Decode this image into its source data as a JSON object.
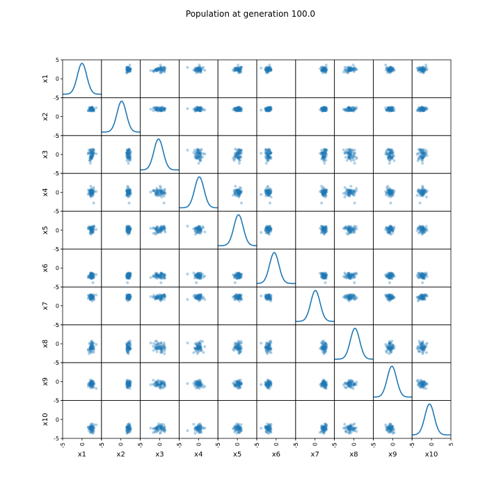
{
  "chart_data": {
    "type": "scatter_matrix",
    "title": "Population at generation 100.0",
    "variables": [
      "x1",
      "x2",
      "x3",
      "x4",
      "x5",
      "x6",
      "x7",
      "x8",
      "x9",
      "x10"
    ],
    "axis_range": [
      -5,
      5
    ],
    "tick_values": [
      -5,
      0,
      5
    ],
    "tick_labels": [
      "-5",
      "0",
      "5"
    ],
    "diagonal": "kde",
    "points_per_panel": 60,
    "color": "#1f77b4",
    "point_alpha": 0.35,
    "clusters": [
      {
        "var": "x1",
        "mean": 2.4,
        "sd": 0.45
      },
      {
        "var": "x2",
        "mean": 2.0,
        "sd": 0.3
      },
      {
        "var": "x3",
        "mean": 0.0,
        "sd": 0.9
      },
      {
        "var": "x4",
        "mean": 0.0,
        "sd": 0.7
      },
      {
        "var": "x5",
        "mean": 0.2,
        "sd": 0.6
      },
      {
        "var": "x6",
        "mean": -2.0,
        "sd": 0.45
      },
      {
        "var": "x7",
        "mean": 2.3,
        "sd": 0.4
      },
      {
        "var": "x8",
        "mean": -1.0,
        "sd": 0.7
      },
      {
        "var": "x9",
        "mean": -0.7,
        "sd": 0.45
      },
      {
        "var": "x10",
        "mean": -2.3,
        "sd": 0.55
      }
    ],
    "kde_peaks": [
      {
        "var": "x1",
        "peak": 0.0
      },
      {
        "var": "x2",
        "peak": 0.2
      },
      {
        "var": "x3",
        "peak": -0.3
      },
      {
        "var": "x4",
        "peak": 0.2
      },
      {
        "var": "x5",
        "peak": 0.3
      },
      {
        "var": "x6",
        "peak": -0.5
      },
      {
        "var": "x7",
        "peak": 0.1
      },
      {
        "var": "x8",
        "peak": 0.3
      },
      {
        "var": "x9",
        "peak": -0.2
      },
      {
        "var": "x10",
        "peak": -0.5
      }
    ]
  }
}
